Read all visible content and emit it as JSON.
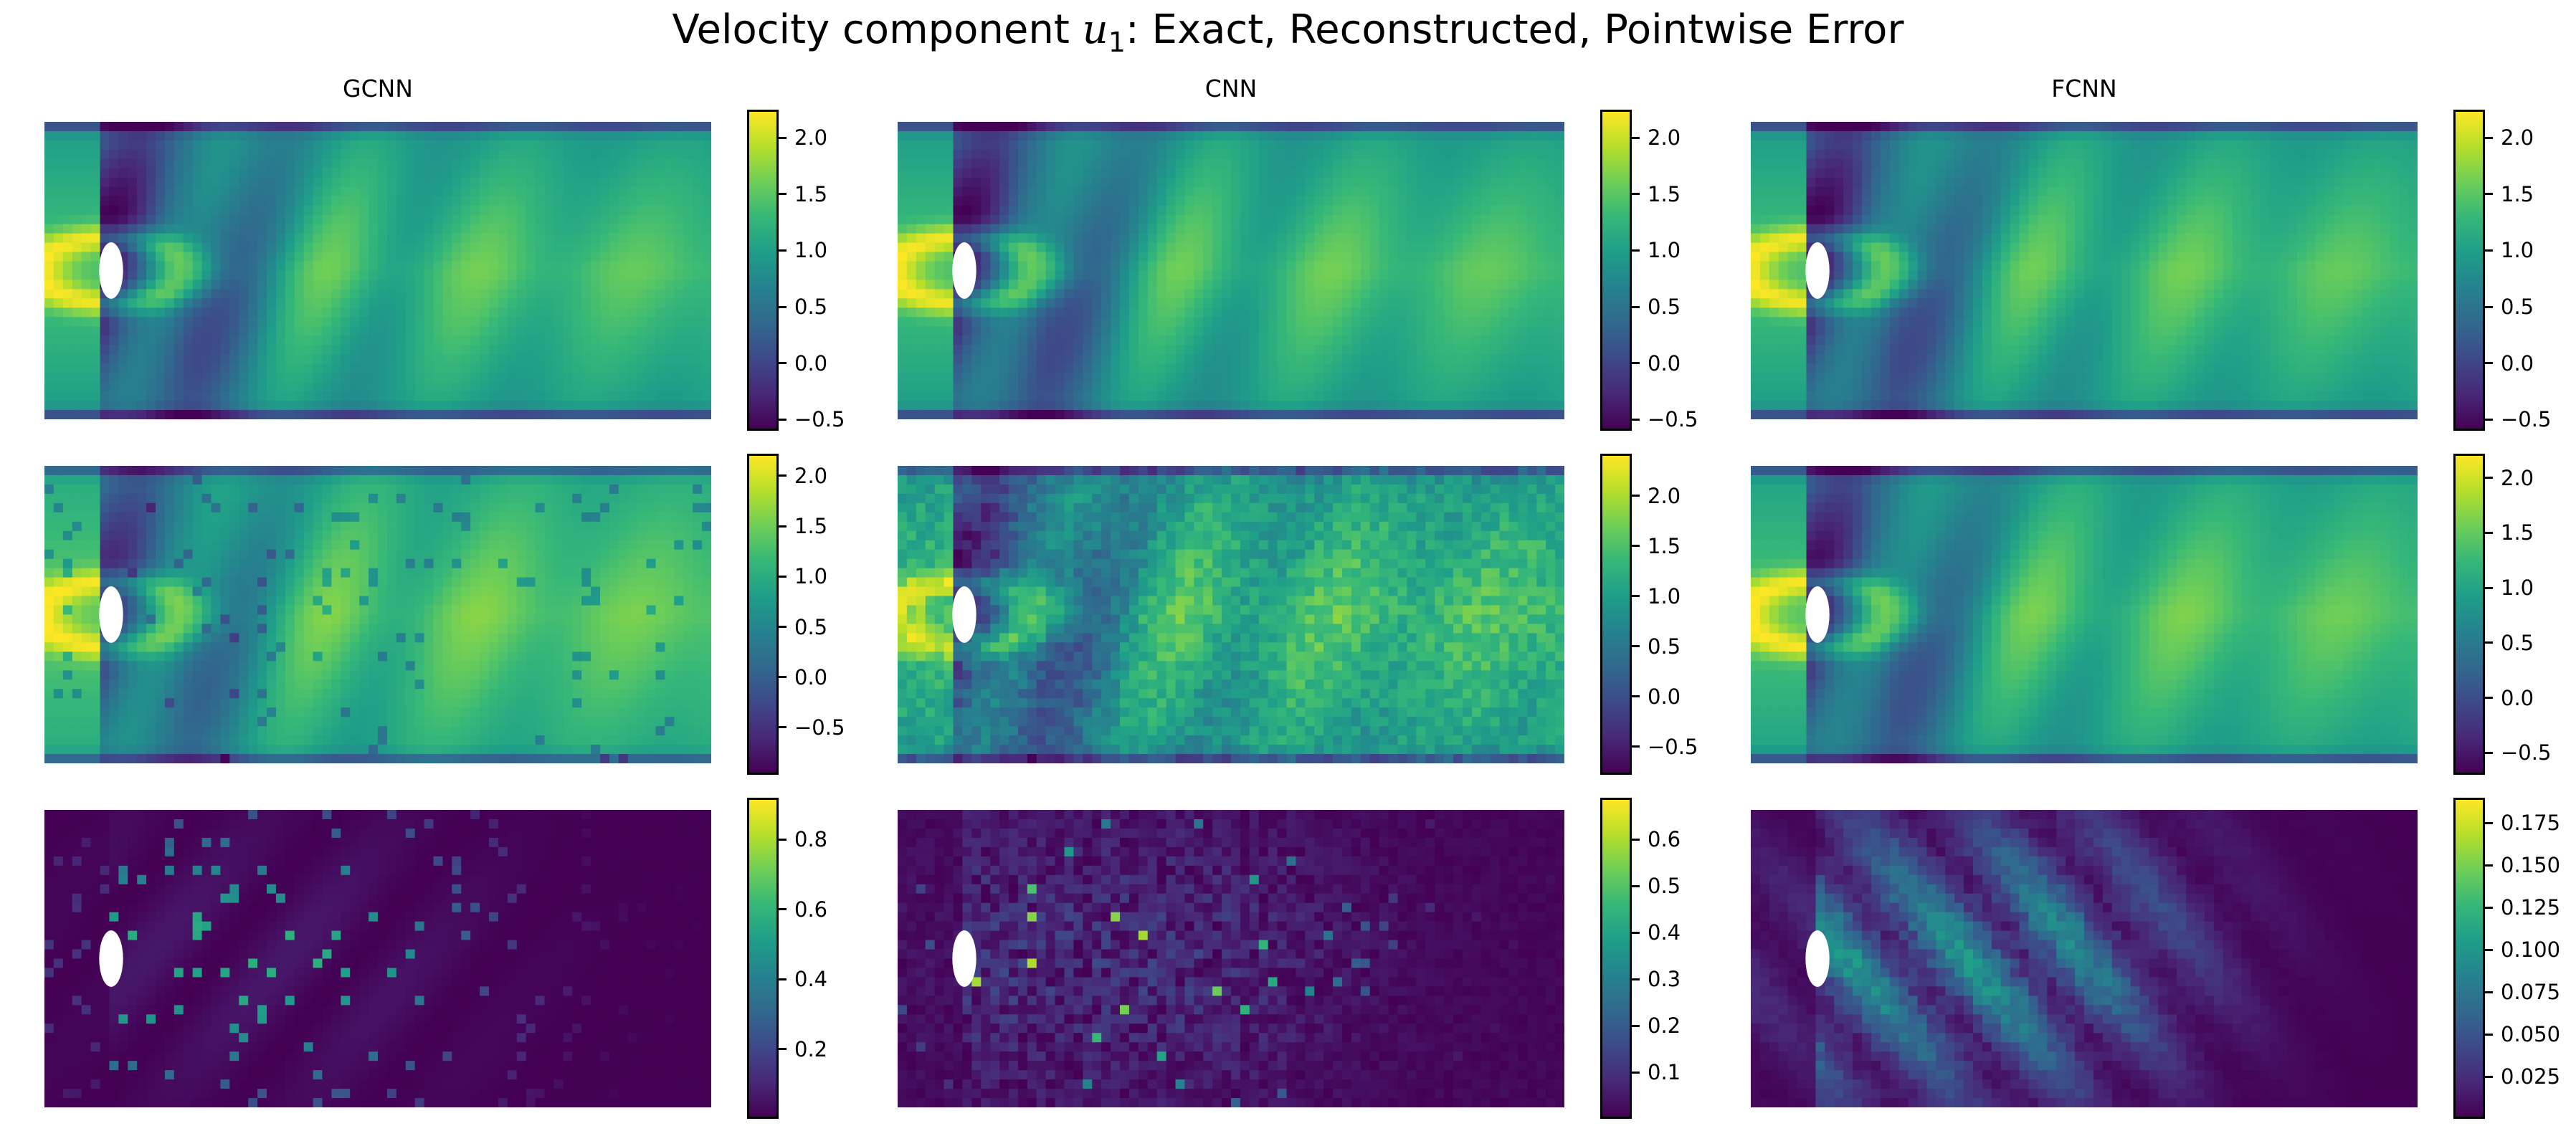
{
  "title": {
    "prefix": "Velocity component ",
    "var": "u",
    "sub": "1",
    "suffix": ": Exact, Reconstructed, Pointwise Error"
  },
  "columns": [
    "GCNN",
    "CNN",
    "FCNN"
  ],
  "colormap": {
    "name": "viridis",
    "stops": [
      "#440154",
      "#482878",
      "#3e4989",
      "#31688e",
      "#26828e",
      "#1f9e89",
      "#35b779",
      "#6ece58",
      "#b5de2b",
      "#fde725"
    ]
  },
  "chart_data": [
    {
      "type": "heatmap",
      "model": "GCNN",
      "row": "Exact",
      "colorbar": {
        "range": [
          -0.6,
          2.25
        ],
        "ticks": [
          "2.0",
          "1.5",
          "1.0",
          "0.5",
          "0.0",
          "−0.5"
        ],
        "tick_values": [
          2.0,
          1.5,
          1.0,
          0.5,
          0.0,
          -0.5
        ]
      }
    },
    {
      "type": "heatmap",
      "model": "CNN",
      "row": "Exact",
      "colorbar": {
        "range": [
          -0.6,
          2.25
        ],
        "ticks": [
          "2.0",
          "1.5",
          "1.0",
          "0.5",
          "0.0",
          "−0.5"
        ],
        "tick_values": [
          2.0,
          1.5,
          1.0,
          0.5,
          0.0,
          -0.5
        ]
      }
    },
    {
      "type": "heatmap",
      "model": "FCNN",
      "row": "Exact",
      "colorbar": {
        "range": [
          -0.6,
          2.25
        ],
        "ticks": [
          "2.0",
          "1.5",
          "1.0",
          "0.5",
          "0.0",
          "−0.5"
        ],
        "tick_values": [
          2.0,
          1.5,
          1.0,
          0.5,
          0.0,
          -0.5
        ]
      }
    },
    {
      "type": "heatmap",
      "model": "GCNN",
      "row": "Reconstructed",
      "colorbar": {
        "range": [
          -0.97,
          2.22
        ],
        "ticks": [
          "2.0",
          "1.5",
          "1.0",
          "0.5",
          "0.0",
          "−0.5"
        ],
        "tick_values": [
          2.0,
          1.5,
          1.0,
          0.5,
          0.0,
          -0.5
        ]
      }
    },
    {
      "type": "heatmap",
      "model": "CNN",
      "row": "Reconstructed",
      "colorbar": {
        "range": [
          -0.78,
          2.42
        ],
        "ticks": [
          "2.0",
          "1.5",
          "1.0",
          "0.5",
          "0.0",
          "−0.5"
        ],
        "tick_values": [
          2.0,
          1.5,
          1.0,
          0.5,
          0.0,
          -0.5
        ]
      }
    },
    {
      "type": "heatmap",
      "model": "FCNN",
      "row": "Reconstructed",
      "colorbar": {
        "range": [
          -0.7,
          2.22
        ],
        "ticks": [
          "2.0",
          "1.5",
          "1.0",
          "0.5",
          "0.0",
          "−0.5"
        ],
        "tick_values": [
          2.0,
          1.5,
          1.0,
          0.5,
          0.0,
          -0.5
        ]
      }
    },
    {
      "type": "heatmap",
      "model": "GCNN",
      "row": "Pointwise Error",
      "colorbar": {
        "range": [
          0.0,
          0.92
        ],
        "ticks": [
          "0.8",
          "0.6",
          "0.4",
          "0.2"
        ],
        "tick_values": [
          0.8,
          0.6,
          0.4,
          0.2
        ]
      }
    },
    {
      "type": "heatmap",
      "model": "CNN",
      "row": "Pointwise Error",
      "colorbar": {
        "range": [
          0.0,
          0.69
        ],
        "ticks": [
          "0.6",
          "0.5",
          "0.4",
          "0.3",
          "0.2",
          "0.1"
        ],
        "tick_values": [
          0.6,
          0.5,
          0.4,
          0.3,
          0.2,
          0.1
        ]
      }
    },
    {
      "type": "heatmap",
      "model": "FCNN",
      "row": "Pointwise Error",
      "colorbar": {
        "range": [
          0.0,
          0.19
        ],
        "ticks": [
          "0.175",
          "0.150",
          "0.125",
          "0.100",
          "0.075",
          "0.050",
          "0.025"
        ],
        "tick_values": [
          0.175,
          0.15,
          0.125,
          0.1,
          0.075,
          0.05,
          0.025
        ]
      }
    }
  ]
}
